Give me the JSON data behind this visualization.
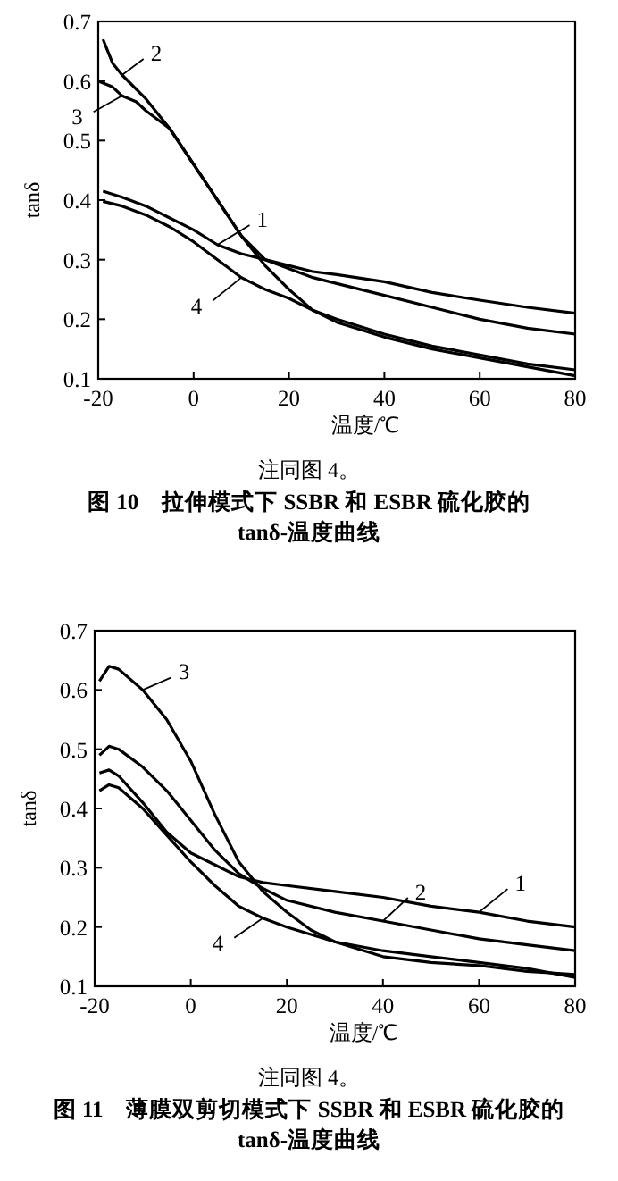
{
  "chart_data": [
    {
      "type": "line",
      "title": "图 10　拉伸模式下 SSBR 和 ESBR 硫化胶的 tanδ-温度曲线",
      "xlabel": "温度/℃",
      "ylabel": "tanδ",
      "annotations": [
        "注同图 4。"
      ],
      "xlim": [
        -20,
        80
      ],
      "ylim": [
        0.1,
        0.7
      ],
      "xticks": [
        -20,
        0,
        20,
        40,
        60,
        80
      ],
      "yticks": [
        0.1,
        0.2,
        0.3,
        0.4,
        0.5,
        0.6,
        0.7
      ],
      "grid": false,
      "legend": "top left",
      "series": [
        {
          "name": "1",
          "color": "#000000",
          "x": [
            -19,
            -15,
            -10,
            -5,
            0,
            5,
            10,
            15,
            20,
            25,
            30,
            40,
            50,
            60,
            70,
            80
          ],
          "values": [
            0.415,
            0.405,
            0.39,
            0.37,
            0.35,
            0.325,
            0.31,
            0.3,
            0.29,
            0.28,
            0.275,
            0.263,
            0.245,
            0.232,
            0.22,
            0.21
          ]
        },
        {
          "name": "2",
          "color": "#000000",
          "x": [
            -19,
            -17,
            -15,
            -10,
            -5,
            0,
            5,
            10,
            15,
            20,
            25,
            30,
            40,
            50,
            60,
            70,
            80
          ],
          "values": [
            0.67,
            0.63,
            0.61,
            0.57,
            0.52,
            0.46,
            0.4,
            0.34,
            0.3,
            0.285,
            0.27,
            0.26,
            0.24,
            0.22,
            0.2,
            0.185,
            0.175
          ]
        },
        {
          "name": "3",
          "color": "#000000",
          "x": [
            -20,
            -17,
            -15,
            -12,
            -10,
            -5,
            0,
            5,
            10,
            15,
            20,
            25,
            30,
            40,
            50,
            60,
            70,
            80
          ],
          "values": [
            0.6,
            0.59,
            0.575,
            0.565,
            0.55,
            0.52,
            0.46,
            0.4,
            0.34,
            0.29,
            0.25,
            0.215,
            0.195,
            0.17,
            0.15,
            0.135,
            0.12,
            0.105
          ]
        },
        {
          "name": "4",
          "color": "#000000",
          "x": [
            -19,
            -15,
            -10,
            -5,
            0,
            5,
            10,
            15,
            20,
            25,
            30,
            40,
            50,
            60,
            70,
            80
          ],
          "values": [
            0.398,
            0.39,
            0.375,
            0.355,
            0.33,
            0.3,
            0.27,
            0.25,
            0.235,
            0.215,
            0.2,
            0.175,
            0.155,
            0.14,
            0.125,
            0.115
          ]
        }
      ]
    },
    {
      "type": "line",
      "title": "图 11　薄膜双剪切模式下 SSBR 和 ESBR 硫化胶的 tanδ-温度曲线",
      "xlabel": "温度/℃",
      "ylabel": "tanδ",
      "annotations": [
        "注同图 4。"
      ],
      "xlim": [
        -20,
        80
      ],
      "ylim": [
        0.1,
        0.7
      ],
      "xticks": [
        -20,
        0,
        20,
        40,
        60,
        80
      ],
      "yticks": [
        0.1,
        0.2,
        0.3,
        0.4,
        0.5,
        0.6,
        0.7
      ],
      "grid": false,
      "legend": "right",
      "series": [
        {
          "name": "1",
          "color": "#000000",
          "x": [
            -19,
            -17,
            -15,
            -10,
            -5,
            0,
            5,
            10,
            15,
            20,
            30,
            40,
            50,
            60,
            70,
            80
          ],
          "values": [
            0.46,
            0.465,
            0.455,
            0.41,
            0.36,
            0.325,
            0.305,
            0.285,
            0.275,
            0.27,
            0.26,
            0.25,
            0.235,
            0.225,
            0.21,
            0.2
          ]
        },
        {
          "name": "2",
          "color": "#000000",
          "x": [
            -19,
            -17,
            -15,
            -10,
            -5,
            0,
            5,
            10,
            15,
            20,
            30,
            40,
            50,
            60,
            70,
            80
          ],
          "values": [
            0.49,
            0.505,
            0.5,
            0.47,
            0.43,
            0.38,
            0.33,
            0.29,
            0.265,
            0.245,
            0.225,
            0.21,
            0.195,
            0.18,
            0.17,
            0.16
          ]
        },
        {
          "name": "3",
          "color": "#000000",
          "x": [
            -19,
            -17,
            -15,
            -10,
            -5,
            0,
            5,
            10,
            15,
            20,
            25,
            30,
            40,
            50,
            60,
            70,
            80
          ],
          "values": [
            0.615,
            0.64,
            0.635,
            0.6,
            0.55,
            0.48,
            0.39,
            0.31,
            0.26,
            0.225,
            0.195,
            0.175,
            0.15,
            0.14,
            0.135,
            0.125,
            0.12
          ]
        },
        {
          "name": "4",
          "color": "#000000",
          "x": [
            -19,
            -17,
            -15,
            -10,
            -5,
            0,
            5,
            10,
            15,
            20,
            30,
            40,
            50,
            60,
            70,
            80
          ],
          "values": [
            0.43,
            0.44,
            0.435,
            0.4,
            0.355,
            0.31,
            0.27,
            0.235,
            0.215,
            0.2,
            0.175,
            0.16,
            0.15,
            0.14,
            0.13,
            0.115
          ]
        }
      ]
    }
  ]
}
